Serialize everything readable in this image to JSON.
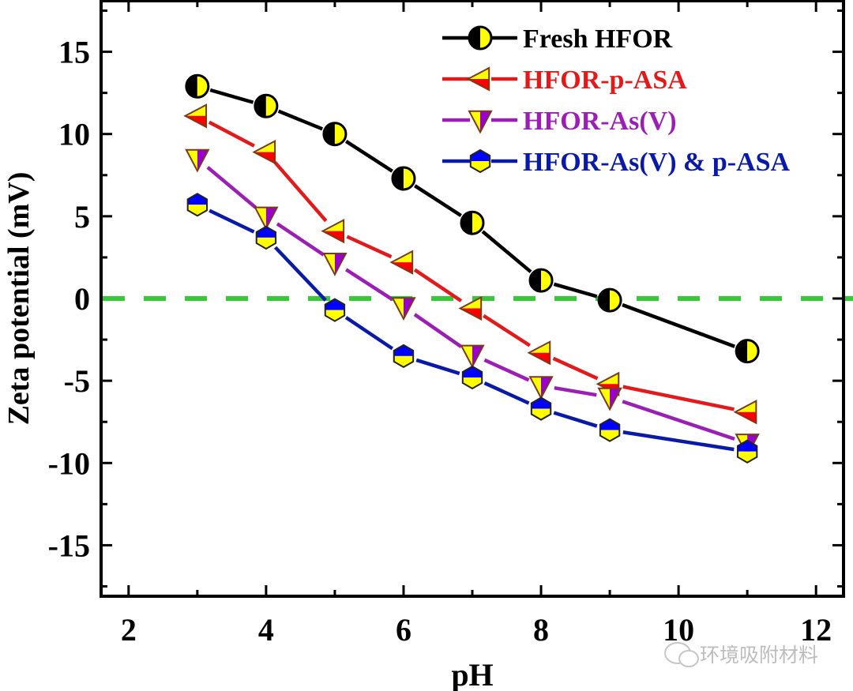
{
  "chart_data": {
    "type": "line",
    "title": "",
    "xlabel": "pH",
    "ylabel": "Zeta potential (mV)",
    "xlim": [
      1.6,
      12.4
    ],
    "ylim": [
      -18.1,
      18.1
    ],
    "xticks": [
      2,
      4,
      6,
      8,
      10,
      12
    ],
    "yticks": [
      15,
      10,
      5,
      0,
      -5,
      -10,
      -15
    ],
    "xtick_labels": [
      "2",
      "4",
      "6",
      "8",
      "10",
      "12"
    ],
    "ytick_labels": [
      "15",
      "10",
      "5",
      "0",
      "-5",
      "-10",
      "-15"
    ],
    "grid": false,
    "legend_position": "top-right",
    "reference_line": {
      "y": 0,
      "style": "dashed",
      "color": "#33cc33"
    },
    "series": [
      {
        "name": "Fresh HFOR",
        "color": "#000000",
        "marker": "circle-half",
        "fill_a": "#000000",
        "fill_b": "#ffff00",
        "x": [
          3,
          4,
          5,
          6,
          7,
          8,
          9,
          11
        ],
        "values": [
          12.9,
          11.7,
          10.0,
          7.3,
          4.6,
          1.1,
          -0.1,
          -3.2
        ]
      },
      {
        "name": "HFOR-p-ASA",
        "color": "#e31a1c",
        "marker": "triangle-left",
        "fill_a": "#ffff00",
        "fill_b": "#ff0000",
        "x": [
          3,
          4,
          5,
          6,
          7,
          8,
          9,
          11
        ],
        "values": [
          11.1,
          8.9,
          4.1,
          2.2,
          -0.6,
          -3.3,
          -5.2,
          -6.9
        ]
      },
      {
        "name": "HFOR-As(V)",
        "color": "#9b1fb5",
        "marker": "triangle-down",
        "fill_a": "#ffff00",
        "fill_b": "#9900cc",
        "x": [
          3,
          4,
          5,
          6,
          7,
          8,
          9,
          11
        ],
        "values": [
          8.5,
          5.0,
          2.2,
          -0.5,
          -3.4,
          -5.3,
          -6.0,
          -8.8
        ]
      },
      {
        "name": "HFOR-As(V) & p-ASA",
        "color": "#0a1aa8",
        "marker": "hexagon",
        "fill_a": "#0000ff",
        "fill_b": "#ffff00",
        "x": [
          3,
          4,
          5,
          6,
          7,
          8,
          9,
          11
        ],
        "values": [
          5.7,
          3.7,
          -0.7,
          -3.5,
          -4.8,
          -6.7,
          -8.0,
          -9.3
        ]
      }
    ]
  },
  "watermark": "环境吸附材料"
}
